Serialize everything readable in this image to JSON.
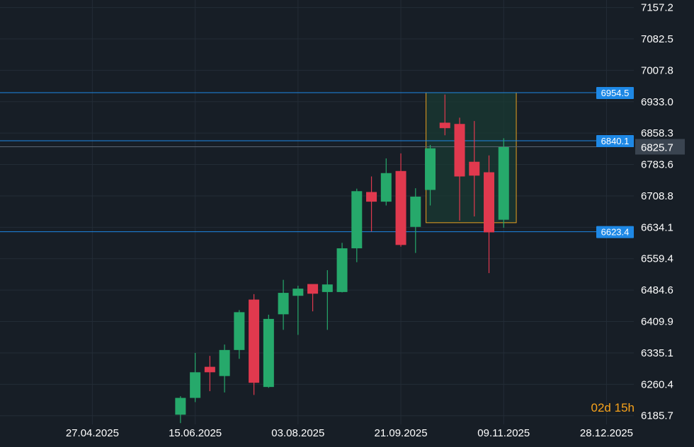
{
  "chart_data": {
    "type": "candlestick",
    "price_axis": {
      "ticks": [
        7157.2,
        7082.5,
        7007.8,
        6933.0,
        6858.3,
        6783.6,
        6708.8,
        6634.1,
        6559.4,
        6484.6,
        6409.9,
        6335.1,
        6260.4,
        6185.7
      ],
      "labels": [
        "7157.2",
        "7082.5",
        "7007.8",
        "6933.0",
        "6858.3",
        "6783.6",
        "6708.8",
        "6634.1",
        "6559.4",
        "6484.6",
        "6409.9",
        "6335.1",
        "6260.4",
        "6185.7"
      ],
      "range": [
        6165,
        7175
      ]
    },
    "time_axis": {
      "labels": [
        "27.04.2025",
        "15.06.2025",
        "03.08.2025",
        "21.09.2025",
        "09.11.2025",
        "28.12.2025"
      ],
      "range": [
        "2025-03-14",
        "2026-01-10"
      ]
    },
    "candles": [
      {
        "date": "2025-06-08",
        "open": 6188,
        "high": 6232,
        "low": 6168,
        "close": 6228
      },
      {
        "date": "2025-06-15",
        "open": 6228,
        "high": 6335,
        "low": 6218,
        "close": 6289
      },
      {
        "date": "2025-06-22",
        "open": 6302,
        "high": 6328,
        "low": 6244,
        "close": 6289
      },
      {
        "date": "2025-06-29",
        "open": 6280,
        "high": 6355,
        "low": 6241,
        "close": 6342
      },
      {
        "date": "2025-07-06",
        "open": 6342,
        "high": 6437,
        "low": 6321,
        "close": 6432
      },
      {
        "date": "2025-07-13",
        "open": 6462,
        "high": 6475,
        "low": 6235,
        "close": 6264
      },
      {
        "date": "2025-07-20",
        "open": 6254,
        "high": 6426,
        "low": 6252,
        "close": 6416
      },
      {
        "date": "2025-07-27",
        "open": 6427,
        "high": 6509,
        "low": 6390,
        "close": 6478
      },
      {
        "date": "2025-08-03",
        "open": 6471,
        "high": 6495,
        "low": 6378,
        "close": 6488
      },
      {
        "date": "2025-08-10",
        "open": 6499,
        "high": 6498,
        "low": 6434,
        "close": 6476
      },
      {
        "date": "2025-08-17",
        "open": 6480,
        "high": 6532,
        "low": 6390,
        "close": 6498
      },
      {
        "date": "2025-08-24",
        "open": 6480,
        "high": 6597,
        "low": 6479,
        "close": 6584
      },
      {
        "date": "2025-08-31",
        "open": 6584,
        "high": 6726,
        "low": 6551,
        "close": 6720
      },
      {
        "date": "2025-09-07",
        "open": 6718,
        "high": 6755,
        "low": 6624,
        "close": 6695
      },
      {
        "date": "2025-09-14",
        "open": 6695,
        "high": 6798,
        "low": 6686,
        "close": 6763
      },
      {
        "date": "2025-09-21",
        "open": 6768,
        "high": 6810,
        "low": 6588,
        "close": 6592
      },
      {
        "date": "2025-09-28",
        "open": 6635,
        "high": 6727,
        "low": 6573,
        "close": 6707
      },
      {
        "date": "2025-10-05",
        "open": 6723,
        "high": 6830,
        "low": 6686,
        "close": 6822
      },
      {
        "date": "2025-10-12",
        "open": 6883,
        "high": 6950,
        "low": 6853,
        "close": 6870
      },
      {
        "date": "2025-10-19",
        "open": 6880,
        "high": 6895,
        "low": 6650,
        "close": 6755
      },
      {
        "date": "2025-10-26",
        "open": 6790,
        "high": 6887,
        "low": 6660,
        "close": 6757
      },
      {
        "date": "2025-11-02",
        "open": 6765,
        "high": 6805,
        "low": 6525,
        "close": 6622
      },
      {
        "date": "2025-11-09",
        "open": 6652,
        "high": 6846,
        "low": 6633,
        "close": 6825
      }
    ],
    "horizontal_levels": [
      {
        "value": 6954.5,
        "label": "6954.5"
      },
      {
        "value": 6840.1,
        "label": "6840.1"
      },
      {
        "value": 6623.4,
        "label": "6623.4"
      }
    ],
    "current_price": {
      "value": 6825.7,
      "label": "6825.7"
    },
    "highlight_box": {
      "from": "2025-10-03",
      "to": "2025-11-15",
      "high": 6954.5,
      "low": 6645
    },
    "countdown": {
      "days": "02",
      "day_unit": "d",
      "hours": "15",
      "hour_unit": "h"
    },
    "colors": {
      "background": "#171e26",
      "up": "#26a96b",
      "down": "#e0394e",
      "level_line": "#1e88e5",
      "level_badge": "#1e88e5",
      "current_badge": "#3a4450",
      "box_border": "#e8a020",
      "box_fill": "#1a3a33",
      "grid": "#232c36",
      "axis_text": "#ffffff",
      "countdown": "#f7a21b"
    }
  }
}
